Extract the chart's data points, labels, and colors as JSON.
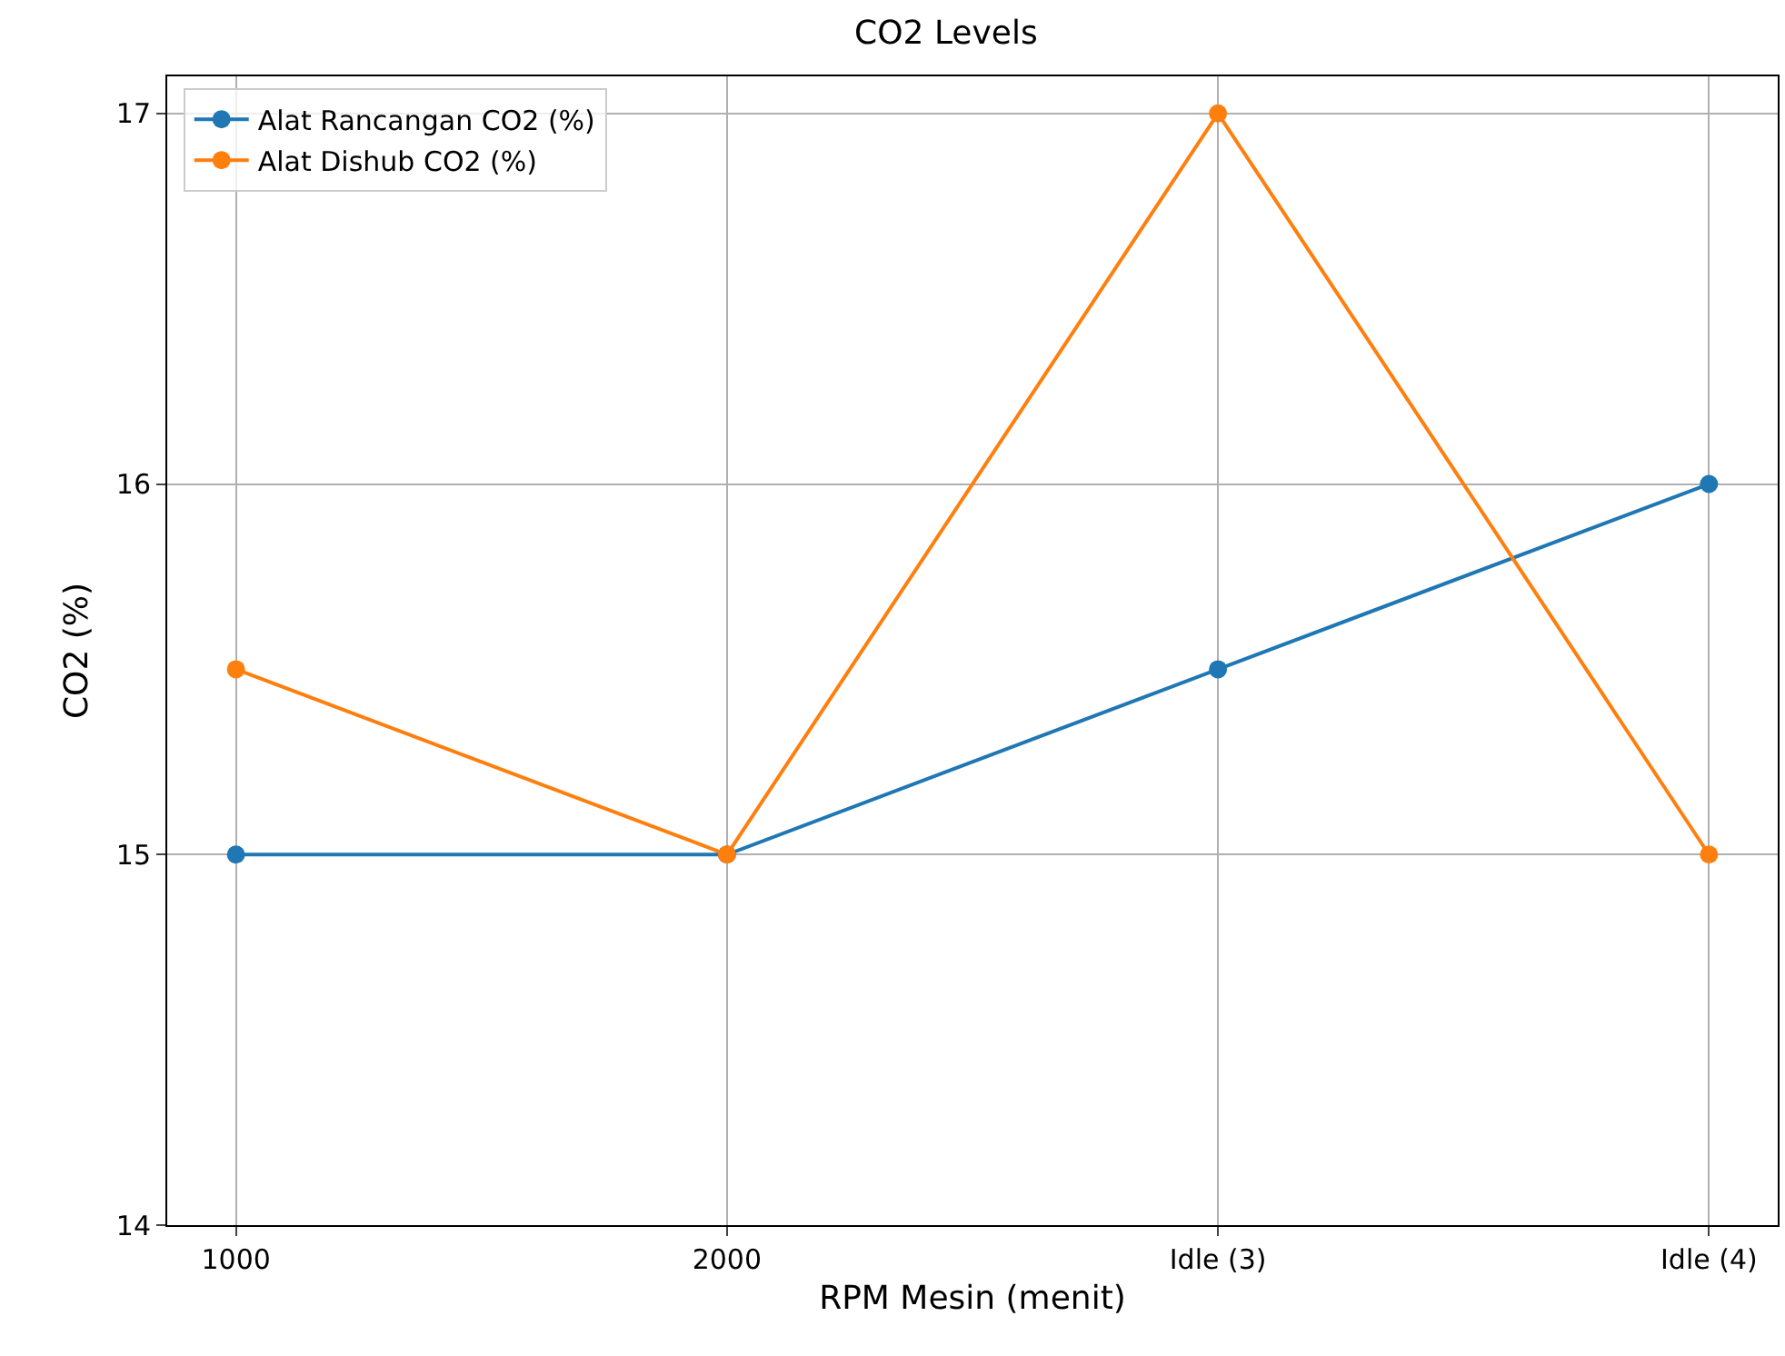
{
  "chart_data": {
    "type": "line",
    "title": "CO2 Levels",
    "xlabel": "RPM Mesin (menit)",
    "ylabel": "CO2 (%)",
    "categories": [
      "1000",
      "2000",
      "Idle (3)",
      "Idle (4)"
    ],
    "series": [
      {
        "name": "Alat Rancangan CO2 (%)",
        "color": "#1f77b4",
        "values": [
          15,
          15,
          15.5,
          16
        ]
      },
      {
        "name": "Alat Dishub CO2 (%)",
        "color": "#ff7f0e",
        "values": [
          15.5,
          15,
          17,
          15
        ]
      }
    ],
    "ylim": [
      14,
      17.1
    ],
    "yticks": [
      14,
      15,
      16,
      17
    ],
    "grid": true,
    "legend": "top left",
    "marker": "circle",
    "line_style": "solid"
  }
}
